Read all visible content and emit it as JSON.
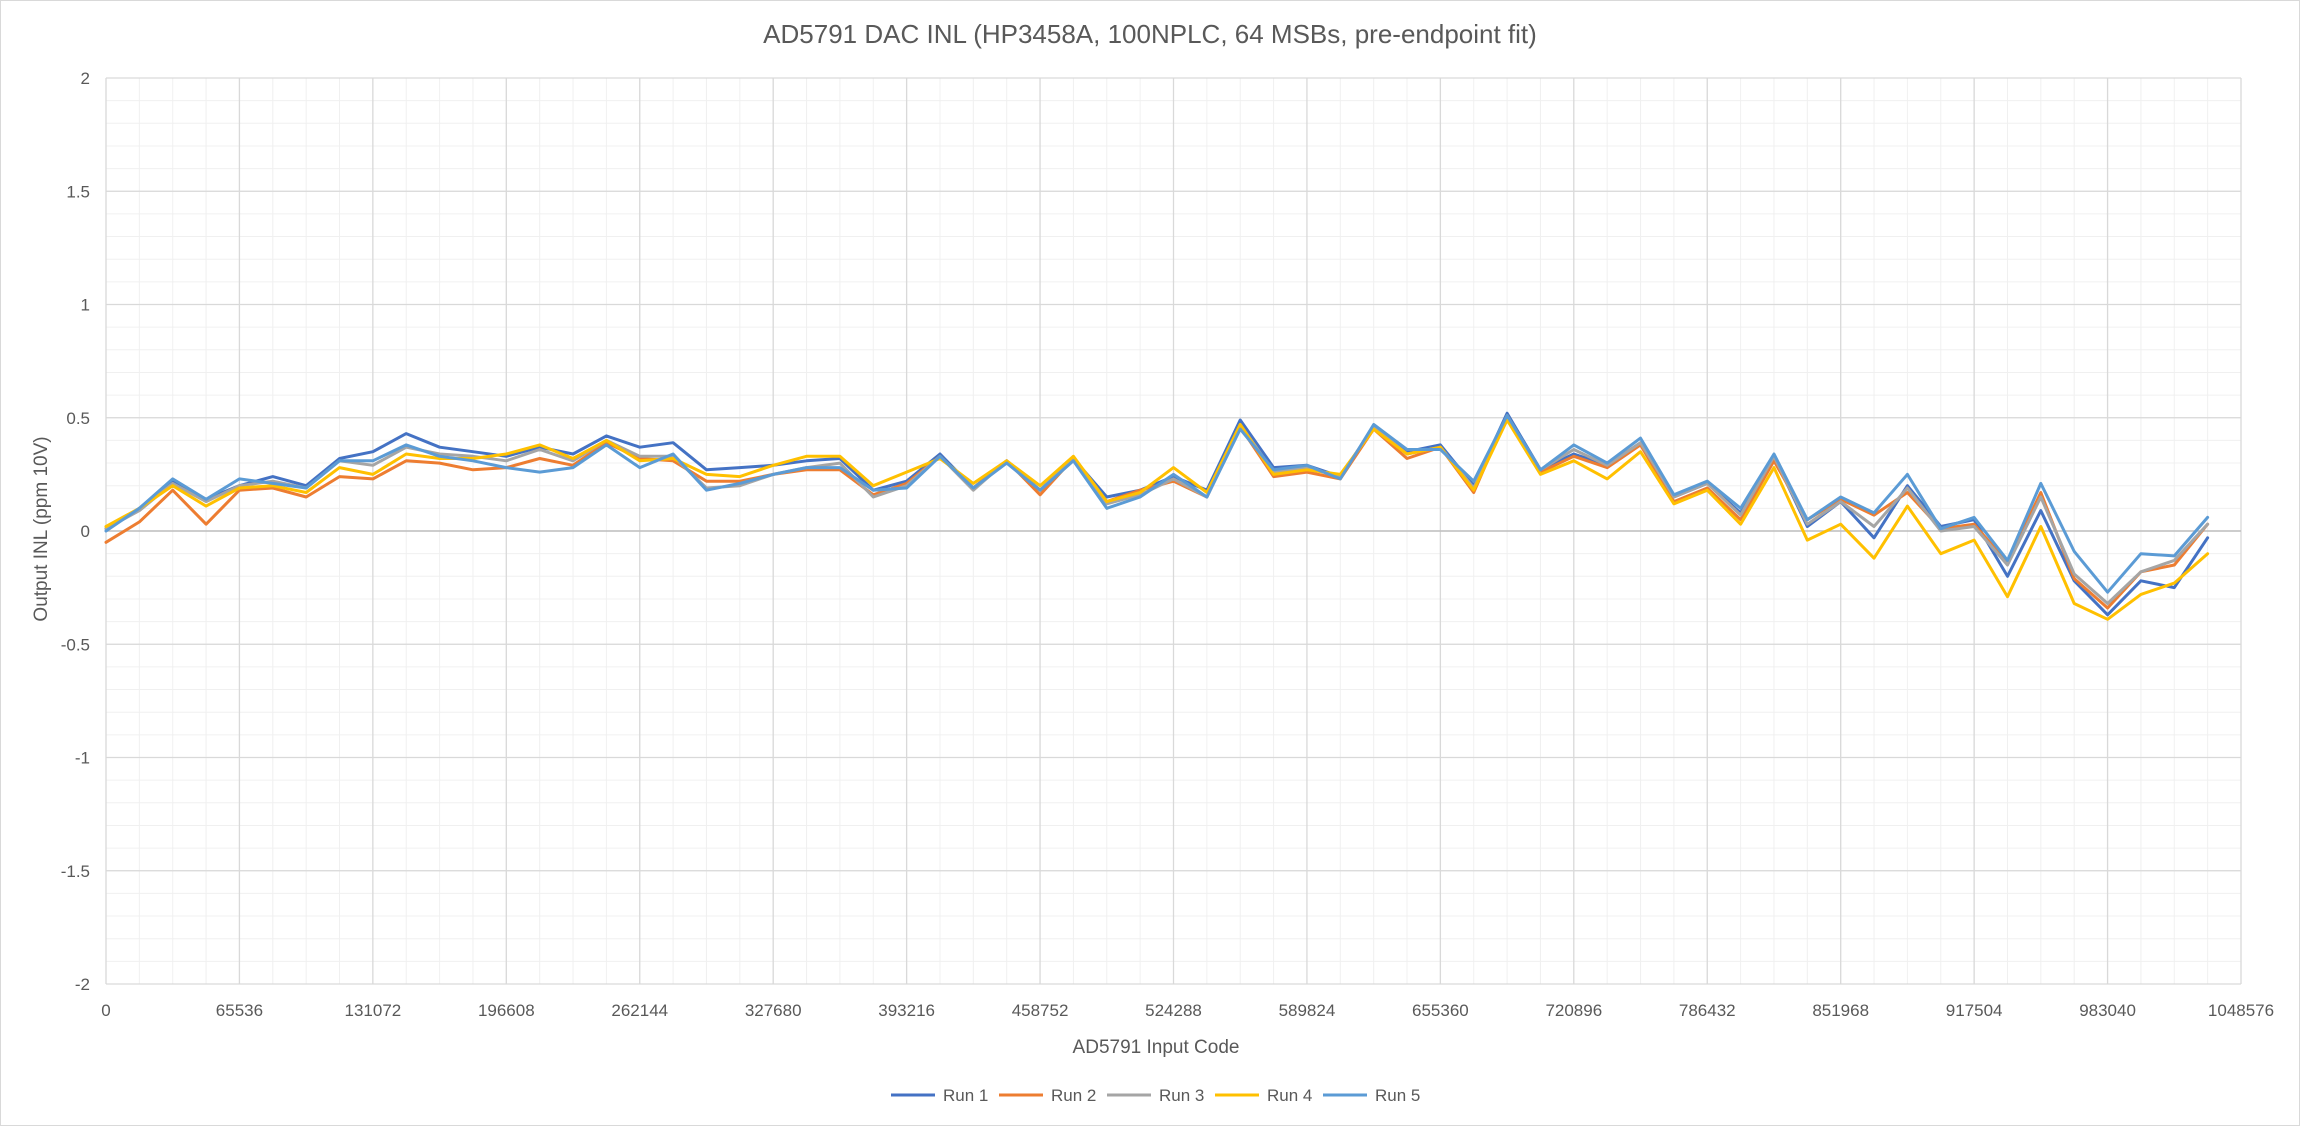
{
  "chart_data": {
    "type": "line",
    "title": "AD5791 DAC INL (HP3458A, 100NPLC, 64 MSBs, pre-endpoint fit)",
    "xlabel": "AD5791 Input Code",
    "ylabel": "Output INL (ppm 10V)",
    "xlim": [
      0,
      1048576
    ],
    "ylim": [
      -2,
      2
    ],
    "x_ticks": [
      "0",
      "65536",
      "131072",
      "196608",
      "262144",
      "327680",
      "393216",
      "458752",
      "524288",
      "589824",
      "655360",
      "720896",
      "786432",
      "851968",
      "917504",
      "983040",
      "1048576"
    ],
    "y_ticks": [
      "2",
      "1.5",
      "1",
      "0.5",
      "0",
      "-0.5",
      "-1",
      "-1.5",
      "-2"
    ],
    "grid": "major and minor gridlines",
    "legend": "bottom",
    "x": [
      0,
      16384,
      32768,
      49152,
      65536,
      81920,
      98304,
      114688,
      131072,
      147456,
      163840,
      180224,
      196608,
      212992,
      229376,
      245760,
      262144,
      278528,
      294912,
      311296,
      327680,
      344064,
      360448,
      376832,
      393216,
      409600,
      425984,
      442368,
      458752,
      475136,
      491520,
      507904,
      524288,
      540672,
      557056,
      573440,
      589824,
      606208,
      622592,
      638976,
      655360,
      671744,
      688128,
      704512,
      720896,
      737280,
      753664,
      770048,
      786432,
      802816,
      819200,
      835584,
      851968,
      868352,
      884736,
      901120,
      917504,
      933888,
      950272,
      966656,
      983040,
      999424,
      1015808,
      1032192
    ],
    "series": [
      {
        "name": "Run 1",
        "color": "#4472C4",
        "values": [
          0.01,
          0.1,
          0.22,
          0.14,
          0.2,
          0.24,
          0.2,
          0.32,
          0.35,
          0.43,
          0.37,
          0.35,
          0.33,
          0.37,
          0.34,
          0.42,
          0.37,
          0.39,
          0.27,
          0.28,
          0.29,
          0.31,
          0.32,
          0.18,
          0.22,
          0.34,
          0.19,
          0.31,
          0.18,
          0.32,
          0.15,
          0.18,
          0.24,
          0.18,
          0.49,
          0.28,
          0.29,
          0.24,
          0.46,
          0.35,
          0.38,
          0.2,
          0.52,
          0.27,
          0.34,
          0.29,
          0.39,
          0.15,
          0.21,
          0.08,
          0.33,
          0.02,
          0.13,
          -0.03,
          0.2,
          0.02,
          0.05,
          -0.2,
          0.09,
          -0.22,
          -0.37,
          -0.22,
          -0.25,
          -0.03
        ]
      },
      {
        "name": "Run 2",
        "color": "#ED7D31",
        "values": [
          -0.05,
          0.04,
          0.18,
          0.03,
          0.18,
          0.19,
          0.15,
          0.24,
          0.23,
          0.31,
          0.3,
          0.27,
          0.28,
          0.32,
          0.29,
          0.39,
          0.32,
          0.31,
          0.22,
          0.22,
          0.25,
          0.27,
          0.27,
          0.16,
          0.21,
          0.33,
          0.19,
          0.31,
          0.16,
          0.32,
          0.13,
          0.18,
          0.22,
          0.15,
          0.46,
          0.24,
          0.26,
          0.23,
          0.45,
          0.32,
          0.37,
          0.17,
          0.51,
          0.26,
          0.33,
          0.28,
          0.38,
          0.13,
          0.19,
          0.05,
          0.31,
          0.05,
          0.14,
          0.07,
          0.17,
          0.01,
          0.03,
          -0.14,
          0.17,
          -0.21,
          -0.34,
          -0.18,
          -0.15,
          0.03
        ]
      },
      {
        "name": "Run 3",
        "color": "#A5A5A5",
        "values": [
          0.01,
          0.09,
          0.21,
          0.13,
          0.2,
          0.22,
          0.19,
          0.31,
          0.29,
          0.37,
          0.34,
          0.33,
          0.31,
          0.36,
          0.31,
          0.4,
          0.33,
          0.33,
          0.19,
          0.2,
          0.25,
          0.28,
          0.3,
          0.15,
          0.2,
          0.33,
          0.18,
          0.31,
          0.18,
          0.32,
          0.12,
          0.16,
          0.23,
          0.15,
          0.47,
          0.26,
          0.28,
          0.24,
          0.46,
          0.34,
          0.37,
          0.19,
          0.5,
          0.27,
          0.36,
          0.29,
          0.39,
          0.15,
          0.21,
          0.07,
          0.33,
          0.03,
          0.13,
          0.02,
          0.19,
          0.0,
          0.02,
          -0.15,
          0.15,
          -0.19,
          -0.32,
          -0.18,
          -0.13,
          0.03
        ]
      },
      {
        "name": "Run 4",
        "color": "#FFC000",
        "values": [
          0.02,
          0.1,
          0.2,
          0.11,
          0.19,
          0.2,
          0.17,
          0.28,
          0.25,
          0.34,
          0.32,
          0.32,
          0.34,
          0.38,
          0.32,
          0.4,
          0.31,
          0.32,
          0.25,
          0.24,
          0.29,
          0.33,
          0.33,
          0.2,
          0.26,
          0.32,
          0.21,
          0.31,
          0.2,
          0.33,
          0.13,
          0.17,
          0.28,
          0.17,
          0.47,
          0.25,
          0.27,
          0.25,
          0.45,
          0.34,
          0.37,
          0.18,
          0.49,
          0.25,
          0.31,
          0.23,
          0.35,
          0.12,
          0.18,
          0.03,
          0.28,
          -0.04,
          0.03,
          -0.12,
          0.11,
          -0.1,
          -0.04,
          -0.29,
          0.02,
          -0.32,
          -0.39,
          -0.28,
          -0.23,
          -0.1
        ]
      },
      {
        "name": "Run 5",
        "color": "#5B9BD5",
        "values": [
          0.0,
          0.1,
          0.23,
          0.14,
          0.23,
          0.21,
          0.19,
          0.31,
          0.31,
          0.38,
          0.33,
          0.31,
          0.28,
          0.26,
          0.28,
          0.38,
          0.28,
          0.34,
          0.18,
          0.21,
          0.25,
          0.28,
          0.28,
          0.18,
          0.19,
          0.33,
          0.19,
          0.3,
          0.18,
          0.31,
          0.1,
          0.15,
          0.25,
          0.15,
          0.45,
          0.27,
          0.29,
          0.23,
          0.47,
          0.36,
          0.36,
          0.22,
          0.51,
          0.27,
          0.38,
          0.3,
          0.41,
          0.16,
          0.22,
          0.1,
          0.34,
          0.05,
          0.15,
          0.08,
          0.25,
          0.01,
          0.06,
          -0.13,
          0.21,
          -0.09,
          -0.27,
          -0.1,
          -0.11,
          0.06
        ]
      }
    ]
  }
}
